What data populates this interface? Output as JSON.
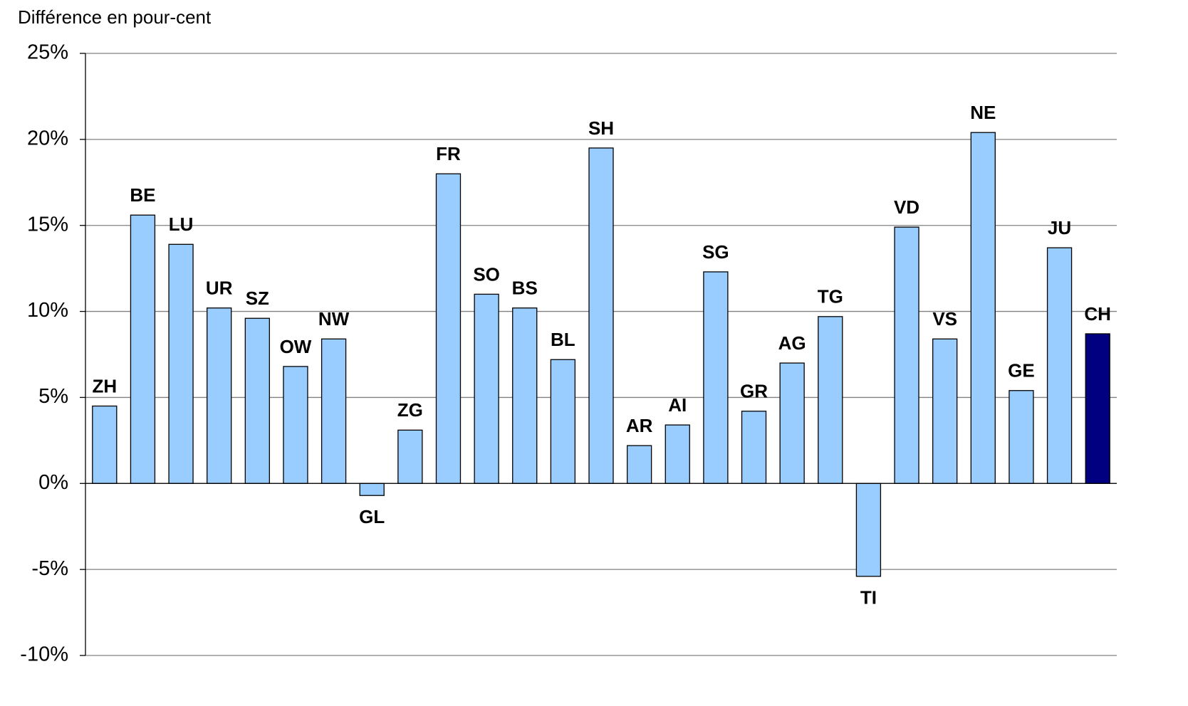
{
  "chart_data": {
    "type": "bar",
    "y_axis_label": "Différence en pour-cent",
    "categories": [
      "ZH",
      "BE",
      "LU",
      "UR",
      "SZ",
      "OW",
      "NW",
      "GL",
      "ZG",
      "FR",
      "SO",
      "BS",
      "BL",
      "SH",
      "AR",
      "AI",
      "SG",
      "GR",
      "AG",
      "TG",
      "TI",
      "VD",
      "VS",
      "NE",
      "GE",
      "JU",
      "CH"
    ],
    "values": [
      4.5,
      15.6,
      13.9,
      10.2,
      9.6,
      6.8,
      8.4,
      -0.7,
      3.1,
      18.0,
      11.0,
      10.2,
      7.2,
      19.5,
      2.2,
      3.4,
      12.3,
      4.2,
      7.0,
      9.7,
      -5.4,
      14.9,
      8.4,
      20.4,
      5.4,
      13.7,
      8.7
    ],
    "colors": [
      "#99ccff",
      "#99ccff",
      "#99ccff",
      "#99ccff",
      "#99ccff",
      "#99ccff",
      "#99ccff",
      "#99ccff",
      "#99ccff",
      "#99ccff",
      "#99ccff",
      "#99ccff",
      "#99ccff",
      "#99ccff",
      "#99ccff",
      "#99ccff",
      "#99ccff",
      "#99ccff",
      "#99ccff",
      "#99ccff",
      "#99ccff",
      "#99ccff",
      "#99ccff",
      "#99ccff",
      "#99ccff",
      "#99ccff",
      "#000080"
    ],
    "ylim": [
      -10,
      25
    ],
    "yticks": [
      {
        "value": -10,
        "label": "-10%"
      },
      {
        "value": -5,
        "label": "-5%"
      },
      {
        "value": 0,
        "label": "0%"
      },
      {
        "value": 5,
        "label": "5%"
      },
      {
        "value": 10,
        "label": "10%"
      },
      {
        "value": 15,
        "label": "15%"
      },
      {
        "value": 20,
        "label": "20%"
      },
      {
        "value": 25,
        "label": "25%"
      }
    ],
    "grid": true
  }
}
